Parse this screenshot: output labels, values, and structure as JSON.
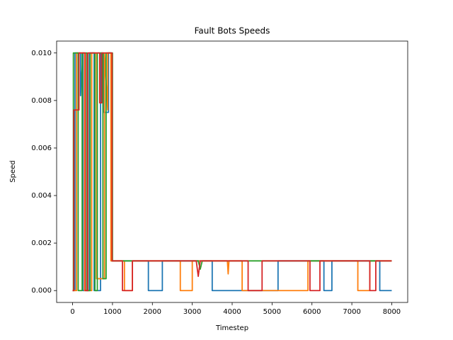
{
  "chart_data": {
    "type": "line",
    "title": "Fault Bots Speeds",
    "xlabel": "Timestep",
    "ylabel": "Speed",
    "xlim": [
      -400,
      8400
    ],
    "ylim": [
      -0.0005,
      0.0105
    ],
    "xticks": [
      0,
      1000,
      2000,
      3000,
      4000,
      5000,
      6000,
      7000,
      8000
    ],
    "yticks": [
      {
        "value": 0,
        "label": "0.000"
      },
      {
        "value": 0.002,
        "label": "0.002"
      },
      {
        "value": 0.004,
        "label": "0.004"
      },
      {
        "value": 0.006,
        "label": "0.006"
      },
      {
        "value": 0.008,
        "label": "0.008"
      },
      {
        "value": 0.01,
        "label": "0.010"
      }
    ],
    "series": [
      {
        "color": "#1f77b4",
        "x": [
          0,
          60,
          60,
          200,
          200,
          260,
          260,
          420,
          420,
          540,
          540,
          700,
          700,
          780,
          780,
          900,
          900,
          970,
          970,
          1900,
          1900,
          2250,
          2250,
          3500,
          3500,
          5150,
          5150,
          6300,
          6300,
          6500,
          6500,
          7700,
          7700,
          8000
        ],
        "values": [
          0,
          0,
          0.01,
          0.01,
          0.0082,
          0.01,
          0,
          0,
          0.01,
          0.01,
          0,
          0,
          0.01,
          0.01,
          0.0075,
          0.0075,
          0.01,
          0.01,
          0.00125,
          0.00125,
          0,
          0,
          0.00125,
          0.00125,
          0,
          0,
          0.00125,
          0.00125,
          0,
          0,
          0.00125,
          0.00125,
          0,
          0
        ]
      },
      {
        "color": "#ff7f0e",
        "x": [
          0,
          100,
          100,
          300,
          300,
          480,
          480,
          600,
          600,
          800,
          800,
          880,
          880,
          960,
          960,
          1300,
          1300,
          1500,
          1500,
          2700,
          2700,
          3000,
          3000,
          3880,
          3900,
          3920,
          4250,
          4250,
          5900,
          5900,
          7150,
          7150,
          7450,
          7450,
          8000
        ],
        "values": [
          0,
          0,
          0.01,
          0.01,
          0,
          0,
          0.01,
          0.01,
          0.0005,
          0.0005,
          0.01,
          0.0076,
          0.01,
          0.01,
          0.00125,
          0.00125,
          0,
          0,
          0.00125,
          0.00125,
          0,
          0,
          0.00125,
          0.00125,
          0.0007,
          0.00125,
          0.00125,
          0,
          0,
          0.00125,
          0.00125,
          0,
          0,
          0.00125,
          0.00125
        ]
      },
      {
        "color": "#2ca02c",
        "x": [
          0,
          20,
          20,
          140,
          140,
          240,
          240,
          360,
          360,
          440,
          440,
          560,
          560,
          620,
          620,
          760,
          760,
          840,
          840,
          1000,
          1000,
          3150,
          3200,
          3250,
          8000
        ],
        "values": [
          0,
          0,
          0.01,
          0.01,
          0,
          0,
          0.01,
          0.01,
          0,
          0,
          0.01,
          0.01,
          0,
          0,
          0.01,
          0.01,
          0.0005,
          0.0005,
          0.01,
          0.01,
          0.00125,
          0.00125,
          0.0009,
          0.00125,
          0.00125
        ]
      },
      {
        "color": "#d62728",
        "x": [
          0,
          30,
          30,
          160,
          160,
          320,
          320,
          380,
          380,
          680,
          680,
          730,
          730,
          990,
          990,
          1250,
          1250,
          1500,
          1500,
          3100,
          3150,
          3200,
          4400,
          4400,
          4750,
          4750,
          5950,
          5950,
          6200,
          6200,
          7450,
          7450,
          7600,
          7600,
          8000
        ],
        "values": [
          0,
          0,
          0.0076,
          0.0076,
          0.01,
          0.01,
          0,
          0,
          0.01,
          0.01,
          0.0079,
          0.0079,
          0.01,
          0.01,
          0.00125,
          0.00125,
          0,
          0,
          0.00125,
          0.00125,
          0.0006,
          0.00125,
          0.00125,
          0,
          0,
          0.00125,
          0.00125,
          0,
          0,
          0.00125,
          0.00125,
          0,
          0,
          0.00125,
          0.00125
        ]
      }
    ]
  }
}
